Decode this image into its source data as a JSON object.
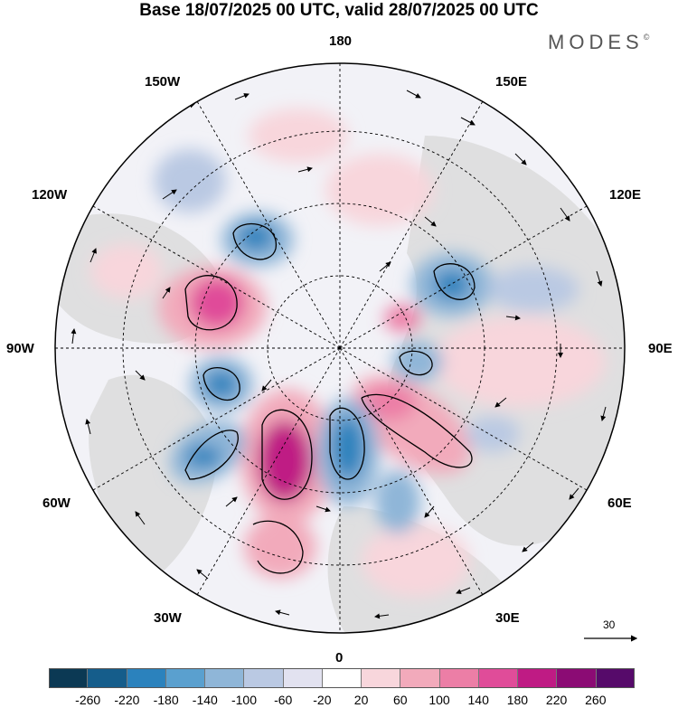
{
  "title": "Base 18/07/2025 00 UTC, valid 28/07/2025 00 UTC",
  "brand": {
    "name": "MODES",
    "mark": "©"
  },
  "longitudes": {
    "top": "180",
    "bottom": "0",
    "left": "90W",
    "right": "90E",
    "w150": "150W",
    "e150": "150E",
    "w120": "120W",
    "e120": "120E",
    "w60": "60W",
    "e60": "60E",
    "w30": "30W",
    "e30": "30E"
  },
  "vector_scale": {
    "value": "30"
  },
  "colorbar": {
    "ticks": [
      "-260",
      "-220",
      "-180",
      "-140",
      "-100",
      "-60",
      "-20",
      "20",
      "60",
      "100",
      "140",
      "180",
      "220",
      "260"
    ],
    "colors": [
      "#0b3954",
      "#155d8b",
      "#2b82bd",
      "#5aa0cf",
      "#8fb6d8",
      "#bac9e3",
      "#e2e2f0",
      "#ffffff",
      "#f8d6dc",
      "#f2aabb",
      "#ec7ea6",
      "#e04c99",
      "#bf1b84",
      "#8b0b74",
      "#560a6a"
    ]
  },
  "legend_colors": {
    "frame": "#000000",
    "land": "#e8e8e8",
    "grid": "#000000"
  }
}
